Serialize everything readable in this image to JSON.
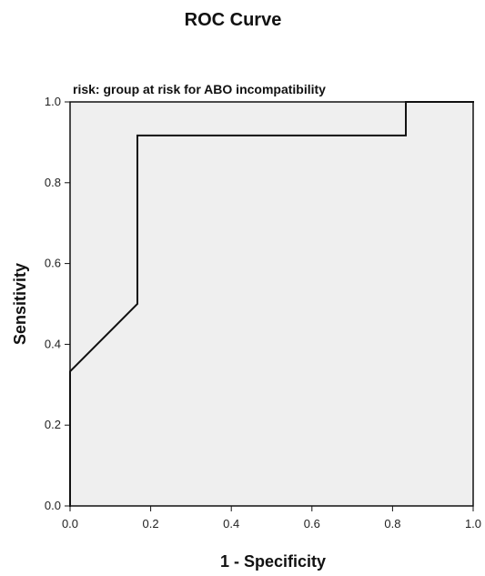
{
  "chart_data": {
    "type": "line",
    "title": "ROC Curve",
    "subtitle": "risk: group at risk for ABO incompatibility",
    "xlabel": "1 - Specificity",
    "ylabel": "Sensitivity",
    "xlim": [
      0,
      1
    ],
    "ylim": [
      0,
      1
    ],
    "x_ticks": [
      "0.0",
      "0.2",
      "0.4",
      "0.6",
      "0.8",
      "1.0"
    ],
    "y_ticks": [
      "0.0",
      "0.2",
      "0.4",
      "0.6",
      "0.8",
      "1.0"
    ],
    "grid": false,
    "legend": "none",
    "series": [
      {
        "values": [
          {
            "x": 0.0,
            "y": 0.0
          },
          {
            "x": 0.0,
            "y": 0.333
          },
          {
            "x": 0.167,
            "y": 0.5
          },
          {
            "x": 0.167,
            "y": 0.917
          },
          {
            "x": 0.833,
            "y": 0.917
          },
          {
            "x": 0.833,
            "y": 1.0
          },
          {
            "x": 1.0,
            "y": 1.0
          }
        ]
      }
    ]
  },
  "colors": {
    "plot_background": "#efefef",
    "axis": "#111111",
    "line": "#111111"
  }
}
